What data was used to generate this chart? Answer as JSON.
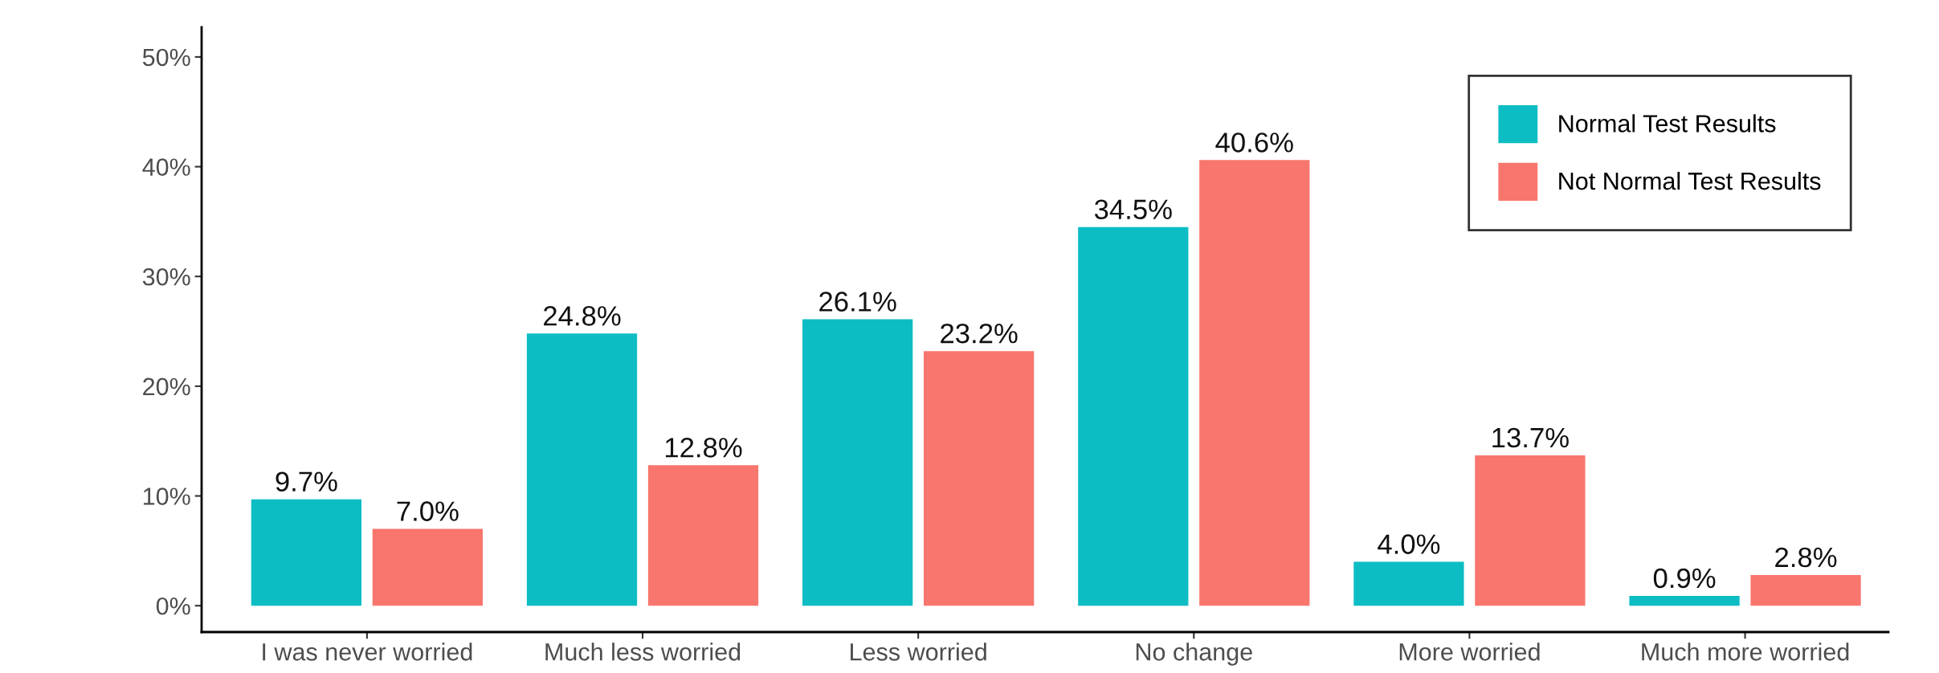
{
  "chart_data": {
    "type": "bar",
    "categories": [
      "I was never worried",
      "Much less worried",
      "Less worried",
      "No change",
      "More worried",
      "Much more worried"
    ],
    "series": [
      {
        "name": "Normal Test Results",
        "color": "#0dbdc4",
        "values": [
          9.7,
          24.8,
          26.1,
          34.5,
          4.0,
          0.9
        ],
        "value_labels": [
          "9.7%",
          "24.8%",
          "26.1%",
          "34.5%",
          "4.0%",
          "0.9%"
        ]
      },
      {
        "name": "Not Normal Test Results",
        "color": "#f8766d",
        "values": [
          7.0,
          12.8,
          23.2,
          40.6,
          13.7,
          2.8
        ],
        "value_labels": [
          "7.0%",
          "12.8%",
          "23.2%",
          "40.6%",
          "13.7%",
          "2.8%"
        ]
      }
    ],
    "ylim": [
      -2.4,
      52.7
    ],
    "yticks": [
      {
        "value": 0,
        "label": "0%"
      },
      {
        "value": 10,
        "label": "10%"
      },
      {
        "value": 20,
        "label": "20%"
      },
      {
        "value": 30,
        "label": "30%"
      },
      {
        "value": 40,
        "label": "40%"
      },
      {
        "value": 50,
        "label": "50%"
      }
    ],
    "grid": false,
    "legend": "top right"
  }
}
